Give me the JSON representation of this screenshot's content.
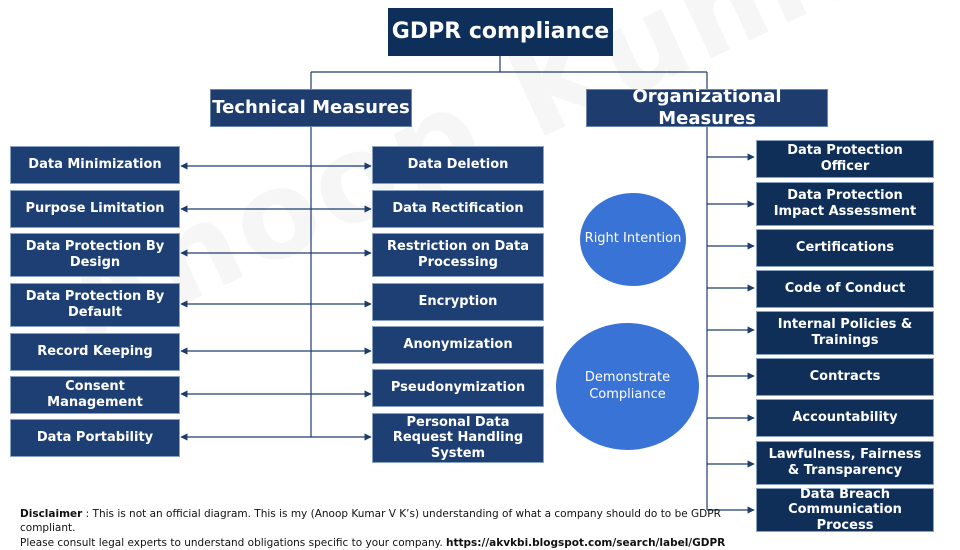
{
  "root": {
    "label": "GDPR compliance"
  },
  "technical": {
    "header": "Technical Measures",
    "left": [
      "Data Minimization",
      "Purpose Limitation",
      "Data Protection By Design",
      "Data Protection By Default",
      "Record Keeping",
      "Consent Management",
      "Data Portability"
    ],
    "right": [
      "Data Deletion",
      "Data Rectification",
      "Restriction on Data Processing",
      "Encryption",
      "Anonymization",
      "Pseudonymization",
      "Personal Data Request Handling System"
    ]
  },
  "organizational": {
    "header": "Organizational Measures",
    "items": [
      "Data Protection Officer",
      "Data Protection Impact Assessment",
      "Certifications",
      "Code of Conduct",
      "Internal Policies & Trainings",
      "Contracts",
      "Accountability",
      "Lawfulness, Fairness & Transparency",
      "Data Breach Communication Process"
    ]
  },
  "circles": {
    "right_intention": "Right Intention",
    "demonstrate": "Demonstrate Compliance"
  },
  "disclaimer": {
    "label": "Disclaimer",
    "line1": " : This is not an official diagram. This is my (Anoop Kumar V K’s) understanding of what a company should do to be GDPR compliant.",
    "line2": "Please consult legal experts to understand obligations specific to your company. ",
    "link": "https://akvkbi.blogspot.com/search/label/GDPR"
  },
  "watermark": "Anoop Kumar V K",
  "colors": {
    "root": "#0d2f5a",
    "header": "#1e3d6e",
    "leaf": "#1e3f73",
    "org_leaf": "#0f2e58",
    "circle": "#3a73d6",
    "line": "#1e3d6e"
  }
}
